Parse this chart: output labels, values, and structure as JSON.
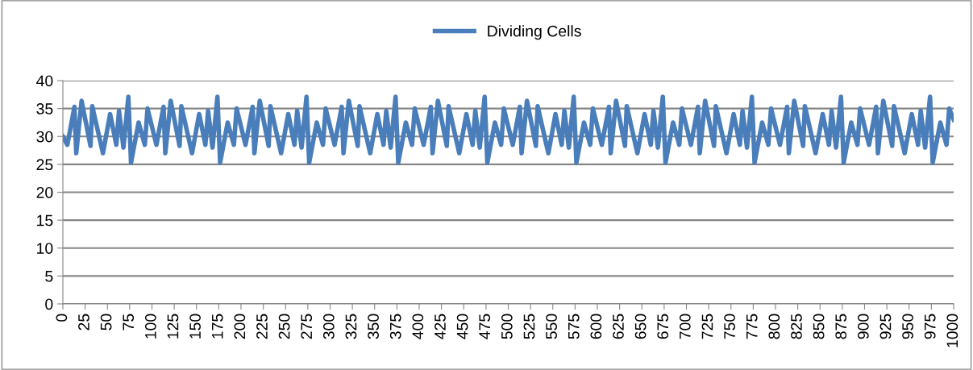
{
  "chart_data": {
    "type": "line",
    "legend": "top",
    "grid": "y",
    "xlim": [
      0,
      1000
    ],
    "ylim": [
      0,
      40
    ],
    "xticks": [
      0,
      25,
      50,
      75,
      100,
      125,
      150,
      175,
      200,
      225,
      250,
      275,
      300,
      325,
      350,
      375,
      400,
      425,
      450,
      475,
      500,
      525,
      550,
      575,
      600,
      625,
      650,
      675,
      700,
      725,
      750,
      775,
      800,
      825,
      850,
      875,
      900,
      925,
      950,
      975,
      1000
    ],
    "yticks": [
      0,
      5,
      10,
      15,
      20,
      25,
      30,
      35,
      40
    ],
    "series": [
      {
        "name": "Dividing Cells",
        "color": "#4a7ebb",
        "x": [
          0,
          5,
          13,
          15,
          21,
          31,
          33,
          45,
          53,
          60,
          63,
          68,
          73.5,
          76.5,
          85,
          92,
          95,
          105,
          113,
          115,
          121,
          131,
          133,
          145,
          153,
          160,
          163,
          168,
          173.5,
          176.5,
          185,
          192,
          195,
          205,
          213,
          215,
          221,
          231,
          233,
          245,
          253,
          260,
          263,
          268,
          273.5,
          276.5,
          285,
          292,
          295,
          305,
          313,
          315,
          321,
          331,
          333,
          345,
          353,
          360,
          363,
          368,
          373.5,
          376.5,
          385,
          392,
          395,
          405,
          413,
          415,
          421,
          431,
          433,
          445,
          453,
          460,
          463,
          468,
          473.5,
          476.5,
          485,
          492,
          495,
          505,
          513,
          515,
          521,
          531,
          533,
          545,
          553,
          560,
          563,
          568,
          573.5,
          576.5,
          585,
          592,
          595,
          605,
          613,
          615,
          621,
          631,
          633,
          645,
          653,
          660,
          663,
          668,
          673.5,
          676.5,
          685,
          692,
          695,
          705,
          713,
          715,
          721,
          731,
          733,
          745,
          753,
          760,
          763,
          768,
          773.5,
          776.5,
          785,
          792,
          795,
          805,
          813,
          815,
          821,
          831,
          833,
          845,
          853,
          860,
          863,
          868,
          873.5,
          876.5,
          885,
          892,
          895,
          905,
          913,
          915,
          921,
          931,
          933,
          945,
          953,
          960,
          963,
          968,
          973.5,
          976.5,
          985,
          992,
          995,
          1000
        ],
        "values": [
          30,
          28.5,
          35.3,
          27,
          36.4,
          28.3,
          35.4,
          27,
          34,
          28.5,
          34.6,
          28,
          37.1,
          25.3,
          32.5,
          28.5,
          35,
          28.5,
          35.3,
          27,
          36.4,
          28.3,
          35.4,
          27,
          34,
          28.5,
          34.6,
          28,
          37.1,
          25.3,
          32.5,
          28.5,
          35,
          28.5,
          35.3,
          27,
          36.4,
          28.3,
          35.4,
          27,
          34,
          28.5,
          34.6,
          28,
          37.1,
          25.3,
          32.5,
          28.5,
          35,
          28.5,
          35.3,
          27,
          36.4,
          28.3,
          35.4,
          27,
          34,
          28.5,
          34.6,
          28,
          37.1,
          25.3,
          32.5,
          28.5,
          35,
          28.5,
          35.3,
          27,
          36.4,
          28.3,
          35.4,
          27,
          34,
          28.5,
          34.6,
          28,
          37.1,
          25.3,
          32.5,
          28.5,
          35,
          28.5,
          35.3,
          27,
          36.4,
          28.3,
          35.4,
          27,
          34,
          28.5,
          34.6,
          28,
          37.1,
          25.3,
          32.5,
          28.5,
          35,
          28.5,
          35.3,
          27,
          36.4,
          28.3,
          35.4,
          27,
          34,
          28.5,
          34.6,
          28,
          37.1,
          25.3,
          32.5,
          28.5,
          35,
          28.5,
          35.3,
          27,
          36.4,
          28.3,
          35.4,
          27,
          34,
          28.5,
          34.6,
          28,
          37.1,
          25.3,
          32.5,
          28.5,
          35,
          28.5,
          35.3,
          27,
          36.4,
          28.3,
          35.4,
          27,
          34,
          28.5,
          34.6,
          28,
          37.1,
          25.3,
          32.5,
          28.5,
          35,
          28.5,
          35.3,
          27,
          36.4,
          28.3,
          35.4,
          27,
          34,
          28.5,
          34.6,
          28,
          37.1,
          25.3,
          32.5,
          28.5,
          35,
          33
        ]
      }
    ]
  }
}
